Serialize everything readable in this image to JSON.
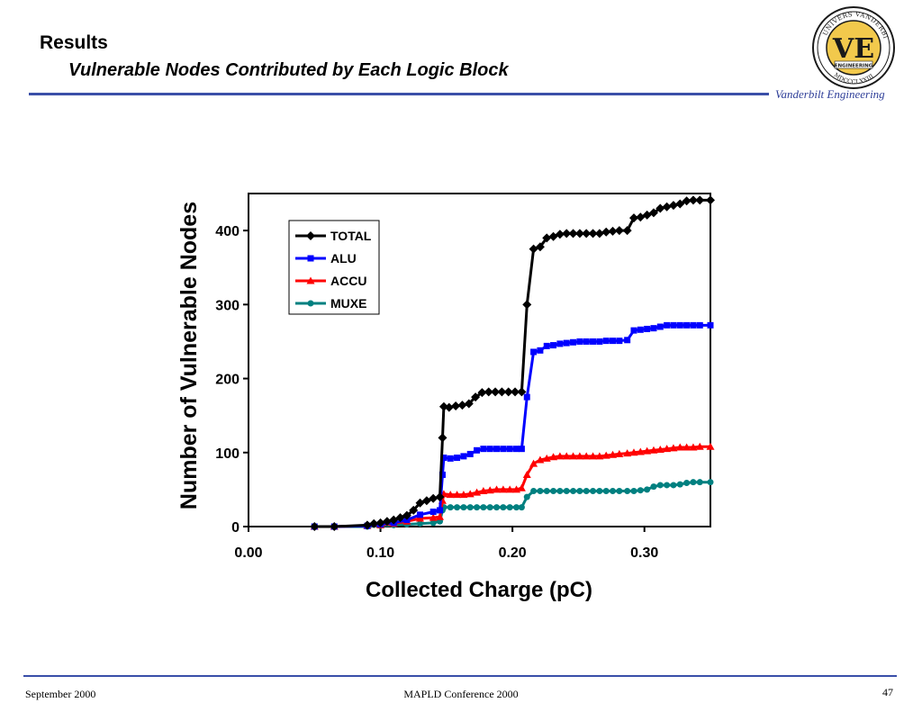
{
  "header": {
    "title": "Results",
    "subtitle": "Vulnerable Nodes Contributed by Each Logic Block",
    "brand": "Vanderbilt Engineering"
  },
  "logo": {
    "lettering": [
      "UNIVERSITAS",
      "VANDERBILTIA",
      "MDCCCLXXIII",
      "VE",
      "ENGINEERING"
    ],
    "colors": {
      "gold": "#f2c94c",
      "dark": "#1a1a1a"
    }
  },
  "footer": {
    "left": "September 2000",
    "center": "MAPLD Conference 2000",
    "right": "47"
  },
  "chart_data": {
    "type": "line",
    "xlabel": "Collected Charge (pC)",
    "ylabel": "Number of Vulnerable Nodes",
    "xlim": [
      0.0,
      0.35
    ],
    "ylim": [
      0,
      450
    ],
    "xticks": [
      "0.00",
      "0.10",
      "0.20",
      "0.30"
    ],
    "xtick_values": [
      0.0,
      0.1,
      0.2,
      0.3
    ],
    "yticks": [
      "0",
      "100",
      "200",
      "300",
      "400"
    ],
    "ytick_values": [
      0,
      100,
      200,
      300,
      400
    ],
    "grid": false,
    "legend_position": "top-left",
    "series": [
      {
        "name": "TOTAL",
        "color": "#000000",
        "marker": "diamond",
        "points": [
          [
            0.05,
            0
          ],
          [
            0.065,
            0
          ],
          [
            0.09,
            2
          ],
          [
            0.095,
            4
          ],
          [
            0.1,
            5
          ],
          [
            0.105,
            7
          ],
          [
            0.11,
            9
          ],
          [
            0.115,
            12
          ],
          [
            0.12,
            15
          ],
          [
            0.125,
            22
          ],
          [
            0.13,
            32
          ],
          [
            0.135,
            35
          ],
          [
            0.14,
            38
          ],
          [
            0.145,
            40
          ],
          [
            0.147,
            120
          ],
          [
            0.148,
            162
          ],
          [
            0.152,
            161
          ],
          [
            0.157,
            163
          ],
          [
            0.162,
            164
          ],
          [
            0.167,
            166
          ],
          [
            0.172,
            175
          ],
          [
            0.177,
            181
          ],
          [
            0.182,
            182
          ],
          [
            0.187,
            182
          ],
          [
            0.192,
            182
          ],
          [
            0.197,
            182
          ],
          [
            0.202,
            182
          ],
          [
            0.207,
            182
          ],
          [
            0.211,
            300
          ],
          [
            0.216,
            375
          ],
          [
            0.221,
            378
          ],
          [
            0.226,
            390
          ],
          [
            0.231,
            392
          ],
          [
            0.236,
            395
          ],
          [
            0.241,
            396
          ],
          [
            0.246,
            396
          ],
          [
            0.251,
            396
          ],
          [
            0.256,
            396
          ],
          [
            0.261,
            396
          ],
          [
            0.266,
            396
          ],
          [
            0.271,
            398
          ],
          [
            0.276,
            399
          ],
          [
            0.281,
            400
          ],
          [
            0.287,
            400
          ],
          [
            0.292,
            417
          ],
          [
            0.297,
            418
          ],
          [
            0.302,
            421
          ],
          [
            0.307,
            424
          ],
          [
            0.312,
            430
          ],
          [
            0.317,
            432
          ],
          [
            0.322,
            434
          ],
          [
            0.327,
            436
          ],
          [
            0.332,
            440
          ],
          [
            0.337,
            441
          ],
          [
            0.342,
            441
          ],
          [
            0.35,
            441
          ]
        ]
      },
      {
        "name": "ALU",
        "color": "#0000ff",
        "marker": "square",
        "points": [
          [
            0.05,
            0
          ],
          [
            0.065,
            0
          ],
          [
            0.09,
            1
          ],
          [
            0.1,
            3
          ],
          [
            0.11,
            5
          ],
          [
            0.12,
            9
          ],
          [
            0.13,
            16
          ],
          [
            0.14,
            20
          ],
          [
            0.145,
            22
          ],
          [
            0.147,
            70
          ],
          [
            0.148,
            93
          ],
          [
            0.153,
            92
          ],
          [
            0.158,
            93
          ],
          [
            0.163,
            95
          ],
          [
            0.168,
            98
          ],
          [
            0.173,
            103
          ],
          [
            0.178,
            105
          ],
          [
            0.183,
            105
          ],
          [
            0.188,
            105
          ],
          [
            0.193,
            105
          ],
          [
            0.198,
            105
          ],
          [
            0.203,
            105
          ],
          [
            0.207,
            105
          ],
          [
            0.211,
            175
          ],
          [
            0.216,
            236
          ],
          [
            0.221,
            238
          ],
          [
            0.226,
            244
          ],
          [
            0.231,
            245
          ],
          [
            0.236,
            247
          ],
          [
            0.241,
            248
          ],
          [
            0.246,
            249
          ],
          [
            0.251,
            250
          ],
          [
            0.256,
            250
          ],
          [
            0.261,
            250
          ],
          [
            0.266,
            250
          ],
          [
            0.271,
            251
          ],
          [
            0.276,
            251
          ],
          [
            0.281,
            251
          ],
          [
            0.287,
            252
          ],
          [
            0.292,
            265
          ],
          [
            0.297,
            266
          ],
          [
            0.302,
            267
          ],
          [
            0.307,
            268
          ],
          [
            0.312,
            270
          ],
          [
            0.317,
            272
          ],
          [
            0.322,
            272
          ],
          [
            0.327,
            272
          ],
          [
            0.332,
            272
          ],
          [
            0.337,
            272
          ],
          [
            0.342,
            272
          ],
          [
            0.35,
            272
          ]
        ]
      },
      {
        "name": "ACCU",
        "color": "#ff0000",
        "marker": "triangle",
        "points": [
          [
            0.05,
            0
          ],
          [
            0.065,
            0
          ],
          [
            0.09,
            1
          ],
          [
            0.1,
            2
          ],
          [
            0.11,
            4
          ],
          [
            0.12,
            7
          ],
          [
            0.13,
            11
          ],
          [
            0.14,
            12
          ],
          [
            0.145,
            13
          ],
          [
            0.147,
            35
          ],
          [
            0.148,
            44
          ],
          [
            0.153,
            43
          ],
          [
            0.158,
            43
          ],
          [
            0.163,
            43
          ],
          [
            0.168,
            44
          ],
          [
            0.173,
            46
          ],
          [
            0.178,
            48
          ],
          [
            0.183,
            49
          ],
          [
            0.188,
            50
          ],
          [
            0.193,
            50
          ],
          [
            0.198,
            50
          ],
          [
            0.203,
            50
          ],
          [
            0.207,
            52
          ],
          [
            0.211,
            70
          ],
          [
            0.216,
            85
          ],
          [
            0.221,
            90
          ],
          [
            0.226,
            92
          ],
          [
            0.231,
            94
          ],
          [
            0.236,
            95
          ],
          [
            0.241,
            95
          ],
          [
            0.246,
            95
          ],
          [
            0.251,
            95
          ],
          [
            0.256,
            95
          ],
          [
            0.261,
            95
          ],
          [
            0.266,
            95
          ],
          [
            0.271,
            96
          ],
          [
            0.276,
            97
          ],
          [
            0.281,
            98
          ],
          [
            0.287,
            99
          ],
          [
            0.292,
            100
          ],
          [
            0.297,
            101
          ],
          [
            0.302,
            102
          ],
          [
            0.307,
            103
          ],
          [
            0.312,
            104
          ],
          [
            0.317,
            105
          ],
          [
            0.322,
            106
          ],
          [
            0.327,
            107
          ],
          [
            0.332,
            107
          ],
          [
            0.337,
            107
          ],
          [
            0.342,
            108
          ],
          [
            0.35,
            108
          ]
        ]
      },
      {
        "name": "MUXE",
        "color": "#008080",
        "marker": "circle",
        "points": [
          [
            0.05,
            0
          ],
          [
            0.065,
            0
          ],
          [
            0.09,
            0
          ],
          [
            0.1,
            1
          ],
          [
            0.11,
            2
          ],
          [
            0.12,
            3
          ],
          [
            0.13,
            4
          ],
          [
            0.14,
            5
          ],
          [
            0.145,
            7
          ],
          [
            0.147,
            22
          ],
          [
            0.148,
            26
          ],
          [
            0.153,
            26
          ],
          [
            0.158,
            26
          ],
          [
            0.163,
            26
          ],
          [
            0.168,
            26
          ],
          [
            0.173,
            26
          ],
          [
            0.178,
            26
          ],
          [
            0.183,
            26
          ],
          [
            0.188,
            26
          ],
          [
            0.193,
            26
          ],
          [
            0.198,
            26
          ],
          [
            0.203,
            26
          ],
          [
            0.207,
            26
          ],
          [
            0.211,
            40
          ],
          [
            0.216,
            48
          ],
          [
            0.221,
            48
          ],
          [
            0.226,
            48
          ],
          [
            0.231,
            48
          ],
          [
            0.236,
            48
          ],
          [
            0.241,
            48
          ],
          [
            0.246,
            48
          ],
          [
            0.251,
            48
          ],
          [
            0.256,
            48
          ],
          [
            0.261,
            48
          ],
          [
            0.266,
            48
          ],
          [
            0.271,
            48
          ],
          [
            0.276,
            48
          ],
          [
            0.281,
            48
          ],
          [
            0.287,
            48
          ],
          [
            0.292,
            48
          ],
          [
            0.297,
            49
          ],
          [
            0.302,
            50
          ],
          [
            0.307,
            54
          ],
          [
            0.312,
            56
          ],
          [
            0.317,
            56
          ],
          [
            0.322,
            56
          ],
          [
            0.327,
            57
          ],
          [
            0.332,
            59
          ],
          [
            0.337,
            60
          ],
          [
            0.342,
            60
          ],
          [
            0.35,
            60
          ]
        ]
      }
    ]
  }
}
